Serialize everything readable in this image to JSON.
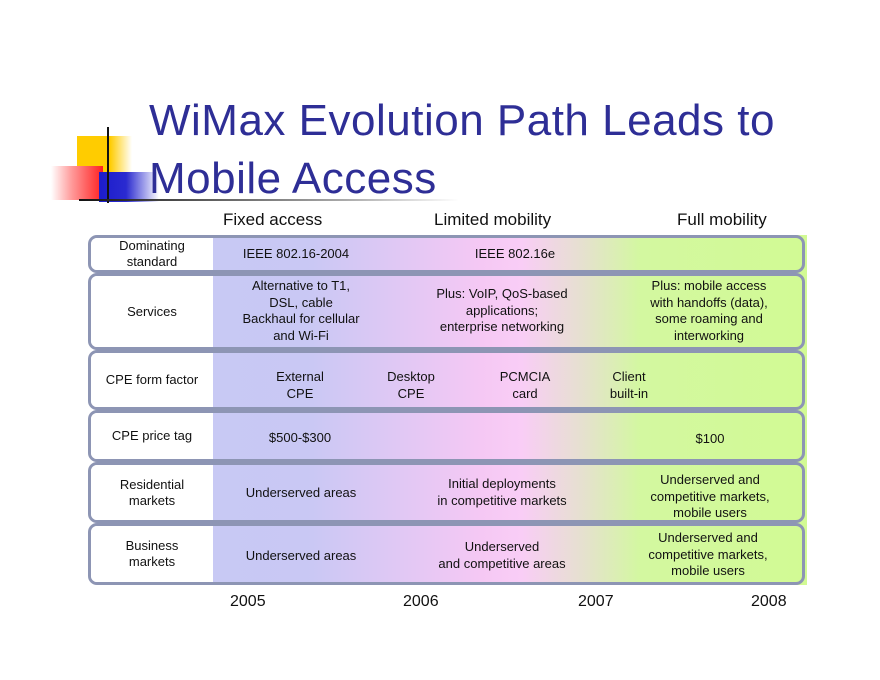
{
  "slide": {
    "title_line1": "WiMax Evolution Path Leads to",
    "title_line2": "Mobile Access",
    "accent_color": "#2e2e96"
  },
  "phases": [
    "Fixed access",
    "Limited mobility",
    "Full mobility"
  ],
  "years": [
    "2005",
    "2006",
    "2007",
    "2008"
  ],
  "rows": [
    {
      "label": "Dominating standard",
      "cells": [
        "IEEE 802.16-2004",
        "IEEE 802.16e"
      ]
    },
    {
      "label": "Services",
      "cells": [
        "Alternative to T1, DSL, cable Backhaul for cellular and Wi-Fi",
        "Plus: VoIP, QoS-based applications; enterprise networking",
        "Plus: mobile access with handoffs (data), some roaming and interworking"
      ]
    },
    {
      "label": "CPE form factor",
      "cells": [
        "External CPE",
        "Desktop CPE",
        "PCMCIA card",
        "Client built-in"
      ]
    },
    {
      "label": "CPE price tag",
      "cells": [
        "$500-$300",
        "$100"
      ]
    },
    {
      "label": "Residential markets",
      "cells": [
        "Underserved areas",
        "Initial deployments in competitive markets",
        "Underserved and competitive markets, mobile users"
      ]
    },
    {
      "label": "Business markets",
      "cells": [
        "Underserved areas",
        "Underserved and competitive areas",
        "Underserved and competitive markets, mobile users"
      ]
    }
  ],
  "gradient_colors": {
    "fixed": "#c8c9f4",
    "limited": "#f9cdf6",
    "full": "#d2fa94"
  },
  "lines": {
    "r0_label": [
      "Dominating",
      "standard"
    ],
    "r1_label": [
      "Services"
    ],
    "r2_label": [
      "CPE form factor"
    ],
    "r3_label": [
      "CPE price tag"
    ],
    "r4_label": [
      "Residential",
      "markets"
    ],
    "r5_label": [
      "Business",
      "markets"
    ],
    "r1_c0": [
      "Alternative to T1,",
      "DSL, cable",
      "Backhaul for cellular",
      "and Wi-Fi"
    ],
    "r1_c1": [
      "Plus: VoIP, QoS-based",
      "applications;",
      "enterprise networking"
    ],
    "r1_c2": [
      "Plus: mobile access",
      "with handoffs (data),",
      "some roaming and",
      "interworking"
    ],
    "r2_c0": [
      "External",
      "CPE"
    ],
    "r2_c1": [
      "Desktop",
      "CPE"
    ],
    "r2_c2": [
      "PCMCIA",
      "card"
    ],
    "r2_c3": [
      "Client",
      "built-in"
    ],
    "r4_c1": [
      "Initial deployments",
      "in competitive markets"
    ],
    "r4_c2": [
      "Underserved and",
      "competitive markets,",
      "mobile users"
    ],
    "r5_c1": [
      "Underserved",
      "and competitive areas"
    ],
    "r5_c2": [
      "Underserved and",
      "competitive markets,",
      "mobile users"
    ]
  }
}
